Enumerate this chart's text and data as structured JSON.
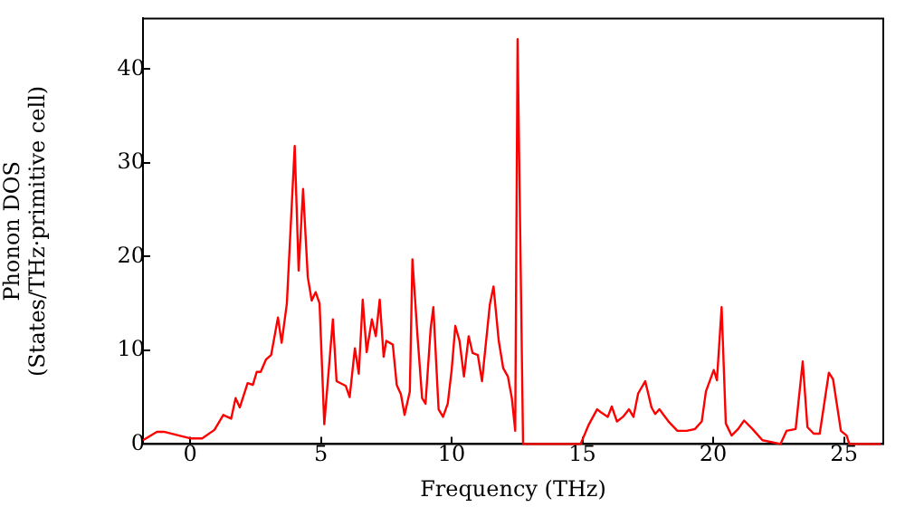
{
  "chart_data": {
    "type": "line",
    "xlabel": "Frequency (THz)",
    "ylabel": "Phonon DOS\n(States/THz·primitive cell)",
    "xlim": [
      -1.8,
      26.5
    ],
    "ylim": [
      0,
      45.4
    ],
    "xticks": [
      0,
      5,
      10,
      15,
      20,
      25
    ],
    "yticks": [
      0,
      10,
      20,
      30,
      40
    ],
    "grid": false,
    "legend": false,
    "marker": "none",
    "line_style": "solid",
    "series": [
      {
        "color": "#ff0000",
        "x": [
          -1.8,
          -1.27,
          -1.0,
          0,
          0.46,
          0.93,
          1.27,
          1.57,
          1.74,
          1.9,
          2.2,
          2.4,
          2.55,
          2.7,
          2.9,
          3.1,
          3.36,
          3.5,
          3.7,
          4.0,
          4.15,
          4.32,
          4.5,
          4.65,
          4.8,
          4.95,
          5.13,
          5.46,
          5.6,
          5.95,
          6.1,
          6.3,
          6.45,
          6.6,
          6.75,
          6.95,
          7.1,
          7.25,
          7.4,
          7.5,
          7.75,
          7.9,
          8.06,
          8.2,
          8.4,
          8.5,
          8.7,
          8.87,
          9.0,
          9.2,
          9.3,
          9.5,
          9.67,
          9.85,
          10.0,
          10.14,
          10.3,
          10.47,
          10.65,
          10.8,
          11.0,
          11.16,
          11.46,
          11.6,
          11.8,
          11.97,
          12.15,
          12.3,
          12.43,
          12.52,
          12.73,
          14.93,
          15.23,
          15.56,
          15.7,
          15.97,
          16.12,
          16.32,
          16.55,
          16.78,
          16.95,
          17.13,
          17.4,
          17.64,
          17.78,
          17.94,
          18.29,
          18.63,
          18.98,
          19.3,
          19.56,
          19.72,
          20.02,
          20.14,
          20.32,
          20.48,
          20.7,
          20.95,
          21.18,
          21.5,
          21.88,
          22.57,
          22.8,
          23.15,
          23.42,
          23.6,
          23.84,
          24.07,
          24.42,
          24.58,
          24.88,
          25.1,
          25.2,
          26.4
        ],
        "values": [
          0.4,
          1.3,
          1.3,
          0.6,
          0.6,
          1.5,
          3.1,
          2.7,
          4.9,
          3.9,
          6.5,
          6.3,
          7.7,
          7.7,
          9,
          9.5,
          13.5,
          10.8,
          15,
          31.8,
          18.5,
          27.2,
          17.8,
          15.3,
          16.2,
          15,
          2.1,
          13.3,
          6.7,
          6.2,
          5,
          10.2,
          7.5,
          15.4,
          9.8,
          13.3,
          11.5,
          15.4,
          9.3,
          11,
          10.6,
          6.3,
          5.3,
          3.1,
          5.6,
          19.7,
          11.3,
          4.9,
          4.3,
          12.4,
          14.6,
          3.7,
          2.9,
          4.3,
          7.9,
          12.6,
          11,
          7.2,
          11.5,
          9.7,
          9.5,
          6.7,
          14.9,
          16.8,
          11,
          8.1,
          7.2,
          4.9,
          1.4,
          43.2,
          0,
          0,
          2,
          3.7,
          3.4,
          2.9,
          4,
          2.4,
          2.9,
          3.7,
          2.9,
          5.4,
          6.7,
          3.9,
          3.2,
          3.7,
          2.4,
          1.4,
          1.4,
          1.6,
          2.4,
          5.6,
          7.9,
          6.8,
          14.6,
          2.2,
          0.9,
          1.6,
          2.5,
          1.6,
          0.4,
          0,
          1.4,
          1.6,
          8.8,
          1.8,
          1.1,
          1.1,
          7.6,
          6.9,
          1.4,
          0.9,
          0,
          0
        ]
      }
    ]
  }
}
